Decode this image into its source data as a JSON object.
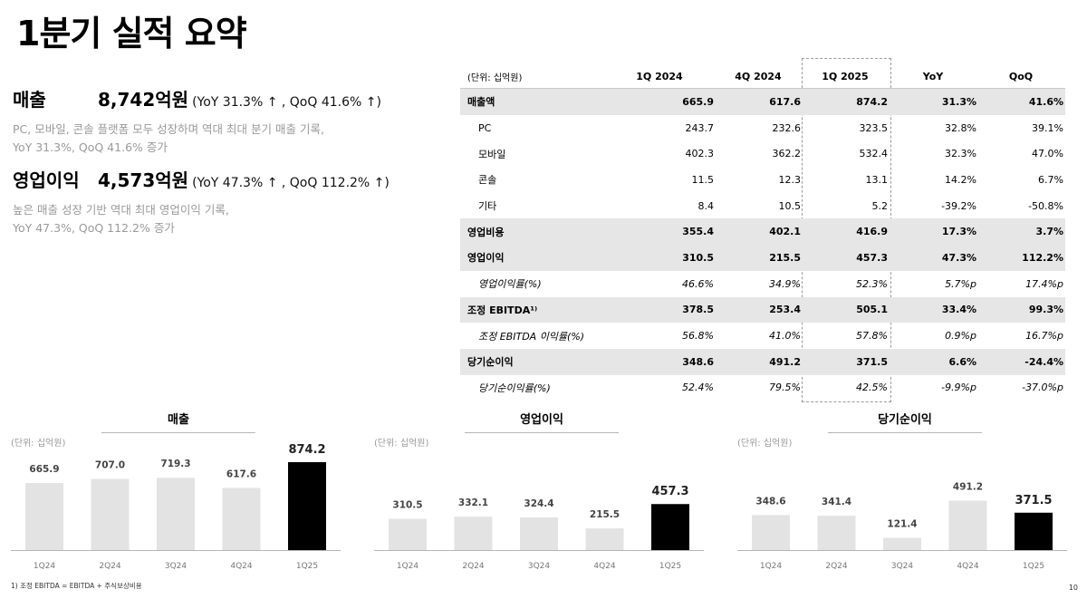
{
  "title": "1분기 실적 요약",
  "kpis": [
    {
      "label": "매출",
      "value": "8,742억원",
      "change": "(YoY 31.3% ↑ , QoQ 41.6% ↑)",
      "desc1": "PC, 모바일, 콘솔 플랫폼 모두 성장하며 역대 최대 분기 매출 기록,",
      "desc2": "YoY 31.3%, QoQ 41.6% 증가"
    },
    {
      "label": "영업이익",
      "value": "4,573억원",
      "change": "(YoY 47.3% ↑ , QoQ 112.2% ↑)",
      "desc1": "높은 매출 성장 기반 역대 최대 영업이익 기록,",
      "desc2": "YoY 47.3%, QoQ 112.2% 증가"
    }
  ],
  "table": {
    "unit": "(단위: 십억원)",
    "headers": [
      "1Q 2024",
      "4Q 2024",
      "1Q 2025",
      "YoY",
      "QoQ"
    ],
    "rows": [
      {
        "label": "매출액",
        "values": [
          "665.9",
          "617.6",
          "874.2",
          "31.3%",
          "41.6%"
        ]
      },
      {
        "label": "PC",
        "values": [
          "243.7",
          "232.6",
          "323.5",
          "32.8%",
          "39.1%"
        ]
      },
      {
        "label": "모바일",
        "values": [
          "402.3",
          "362.2",
          "532.4",
          "32.3%",
          "47.0%"
        ]
      },
      {
        "label": "콘솔",
        "values": [
          "11.5",
          "12.3",
          "13.1",
          "14.2%",
          "6.7%"
        ]
      },
      {
        "label": "기타",
        "values": [
          "8.4",
          "10.5",
          "5.2",
          "-39.2%",
          "-50.8%"
        ]
      },
      {
        "label": "영업비용",
        "values": [
          "355.4",
          "402.1",
          "416.9",
          "17.3%",
          "3.7%"
        ]
      },
      {
        "label": "영업이익",
        "values": [
          "310.5",
          "215.5",
          "457.3",
          "47.3%",
          "112.2%"
        ]
      },
      {
        "label": "영업이익률(%)",
        "values": [
          "46.6%",
          "34.9%",
          "52.3%",
          "5.7%p",
          "17.4%p"
        ]
      },
      {
        "label": "조정 EBITDA¹⁾",
        "values": [
          "378.5",
          "253.4",
          "505.1",
          "33.4%",
          "99.3%"
        ]
      },
      {
        "label": "조정 EBITDA 이익률(%)",
        "values": [
          "56.8%",
          "41.0%",
          "57.8%",
          "0.9%p",
          "16.7%p"
        ]
      },
      {
        "label": "당기순이익",
        "values": [
          "348.6",
          "491.2",
          "371.5",
          "6.6%",
          "-24.4%"
        ]
      },
      {
        "label": "당기순이익률(%)",
        "values": [
          "52.4%",
          "79.5%",
          "42.5%",
          "-9.9%p",
          "-37.0%p"
        ]
      }
    ]
  },
  "chart_data": [
    {
      "type": "bar",
      "title": "매출",
      "unit": "(단위: 십억원)",
      "categories": [
        "1Q24",
        "2Q24",
        "3Q24",
        "4Q24",
        "1Q25"
      ],
      "values": [
        665.9,
        707.0,
        719.3,
        617.6,
        874.2
      ],
      "labels": [
        "665.9",
        "707.0",
        "719.3",
        "617.6",
        "874.2"
      ],
      "highlight_index": 4,
      "colors": {
        "bar": "#e3e3e3",
        "highlight": "#000000"
      }
    },
    {
      "type": "bar",
      "title": "영업이익",
      "unit": "(단위: 십억원)",
      "categories": [
        "1Q24",
        "2Q24",
        "3Q24",
        "4Q24",
        "1Q25"
      ],
      "values": [
        310.5,
        332.1,
        324.4,
        215.5,
        457.3
      ],
      "labels": [
        "310.5",
        "332.1",
        "324.4",
        "215.5",
        "457.3"
      ],
      "highlight_index": 4,
      "colors": {
        "bar": "#e3e3e3",
        "highlight": "#000000"
      }
    },
    {
      "type": "bar",
      "title": "당기순이익",
      "unit": "(단위: 십억원)",
      "categories": [
        "1Q24",
        "2Q24",
        "3Q24",
        "4Q24",
        "1Q25"
      ],
      "values": [
        348.6,
        341.4,
        121.4,
        491.2,
        371.5
      ],
      "labels": [
        "348.6",
        "341.4",
        "121.4",
        "491.2",
        "371.5"
      ],
      "highlight_index": 4,
      "colors": {
        "bar": "#e3e3e3",
        "highlight": "#000000"
      }
    }
  ],
  "footnote": "1) 조정 EBITDA = EBITDA + 주식보상비용",
  "page_number": "10"
}
